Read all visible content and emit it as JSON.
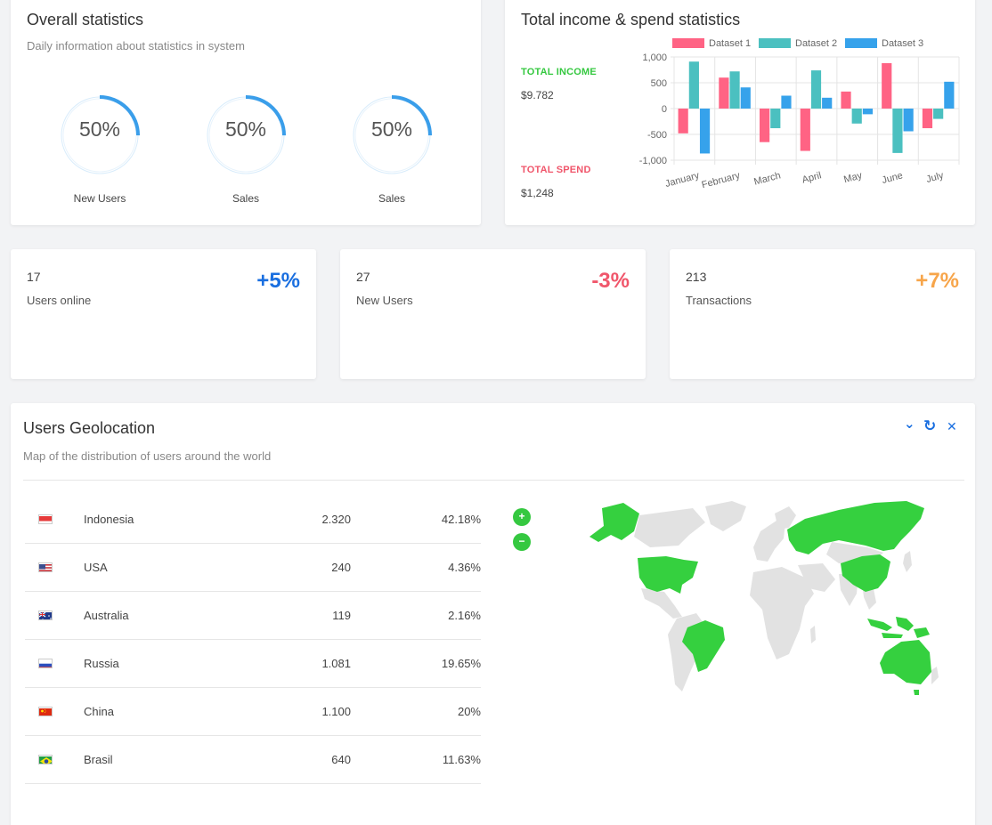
{
  "overall": {
    "title": "Overall statistics",
    "subtitle": "Daily information about statistics in system",
    "gauges": [
      {
        "value": "50%",
        "fraction": 0.5,
        "label": "New Users"
      },
      {
        "value": "50%",
        "fraction": 0.5,
        "label": "Sales"
      },
      {
        "value": "50%",
        "fraction": 0.5,
        "label": "Sales"
      }
    ],
    "gauge_color": "#3a9eea"
  },
  "income": {
    "title": "Total income & spend statistics",
    "income_label": "TOTAL INCOME",
    "income_value": "$9.782",
    "income_color": "#35c840",
    "spend_label": "TOTAL SPEND",
    "spend_value": "$1,248",
    "spend_color": "#f0566b"
  },
  "chart_data": {
    "type": "bar",
    "categories": [
      "January",
      "February",
      "March",
      "April",
      "May",
      "June",
      "July"
    ],
    "series": [
      {
        "name": "Dataset 1",
        "color": "#ff6384",
        "values": [
          -480,
          600,
          -650,
          -820,
          330,
          880,
          -380
        ]
      },
      {
        "name": "Dataset 2",
        "color": "#4bc0c0",
        "values": [
          910,
          720,
          -380,
          740,
          -290,
          -860,
          -200
        ]
      },
      {
        "name": "Dataset 3",
        "color": "#36a2eb",
        "values": [
          -870,
          410,
          250,
          210,
          -110,
          -440,
          520
        ]
      }
    ],
    "yticks": [
      "1,000",
      "500",
      "0",
      "-500",
      "-1,000"
    ],
    "ylim": [
      -1000,
      1000
    ],
    "legend": "top",
    "grid": true
  },
  "kpis": [
    {
      "number": "17",
      "label": "Users online",
      "change": "+5%",
      "color": "#1a6fe0"
    },
    {
      "number": "27",
      "label": "New Users",
      "change": "-3%",
      "color": "#f0566b"
    },
    {
      "number": "213",
      "label": "Transactions",
      "change": "+7%",
      "color": "#f7a54a"
    }
  ],
  "geo": {
    "title": "Users Geolocation",
    "subtitle": "Map of the distribution of users around the world",
    "controls": {
      "collapse": "⌄",
      "refresh": "↻",
      "close": "✕"
    },
    "zoom_in": "+",
    "zoom_out": "−",
    "highlight_color": "#35d03f",
    "land_color": "#e2e2e2",
    "rows": [
      {
        "country": "Indonesia",
        "users": "2.320",
        "percent": "42.18%",
        "flag": "indonesia-flag-icon"
      },
      {
        "country": "USA",
        "users": "240",
        "percent": "4.36%",
        "flag": "usa-flag-icon"
      },
      {
        "country": "Australia",
        "users": "119",
        "percent": "2.16%",
        "flag": "australia-flag-icon"
      },
      {
        "country": "Russia",
        "users": "1.081",
        "percent": "19.65%",
        "flag": "russia-flag-icon"
      },
      {
        "country": "China",
        "users": "1.100",
        "percent": "20%",
        "flag": "china-flag-icon"
      },
      {
        "country": "Brasil",
        "users": "640",
        "percent": "11.63%",
        "flag": "brazil-flag-icon"
      }
    ]
  }
}
